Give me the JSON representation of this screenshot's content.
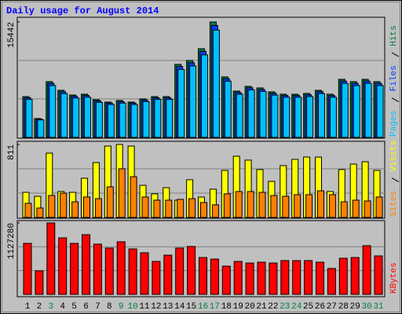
{
  "chart_data": [
    {
      "type": "bar",
      "title": "Daily usage for August 2014",
      "categories": [
        "1",
        "2",
        "3",
        "4",
        "5",
        "6",
        "7",
        "8",
        "9",
        "10",
        "11",
        "12",
        "13",
        "14",
        "15",
        "16",
        "17",
        "18",
        "19",
        "20",
        "21",
        "22",
        "23",
        "24",
        "25",
        "26",
        "27",
        "28",
        "29",
        "30",
        "31"
      ],
      "category_colors": [
        "#000000",
        "#000000",
        "#008040",
        "#000000",
        "#000000",
        "#000000",
        "#000000",
        "#000000",
        "#008040",
        "#008040",
        "#000000",
        "#000000",
        "#000000",
        "#000000",
        "#000000",
        "#008040",
        "#008040",
        "#000000",
        "#000000",
        "#000000",
        "#000000",
        "#000000",
        "#008040",
        "#008040",
        "#000000",
        "#000000",
        "#000000",
        "#000000",
        "#000000",
        "#008040",
        "#008040"
      ],
      "series": [
        {
          "name": "Hits",
          "color": "#008040",
          "values": [
            5460,
            2520,
            7460,
            6300,
            5670,
            5780,
            5040,
            4730,
            4940,
            4730,
            5150,
            5460,
            5460,
            9770,
            10290,
            11870,
            15442,
            8090,
            6200,
            6830,
            6620,
            6090,
            5780,
            5780,
            5880,
            6300,
            5780,
            7770,
            7460,
            7770,
            7460
          ]
        },
        {
          "name": "Files",
          "color": "#0040ff",
          "values": [
            5300,
            2440,
            7240,
            6110,
            5500,
            5610,
            4890,
            4590,
            4790,
            4590,
            5000,
            5300,
            5300,
            9480,
            9980,
            11510,
            14980,
            7850,
            6010,
            6630,
            6420,
            5910,
            5610,
            5610,
            5700,
            6110,
            5610,
            7540,
            7240,
            7540,
            7240
          ]
        },
        {
          "name": "Pages",
          "color": "#00c0ff",
          "values": [
            5080,
            2340,
            6940,
            5860,
            5270,
            5380,
            4690,
            4400,
            4590,
            4400,
            4790,
            5080,
            5080,
            9090,
            9570,
            11040,
            14360,
            7520,
            5770,
            6350,
            6160,
            5660,
            5380,
            5380,
            5470,
            5860,
            5380,
            7230,
            6940,
            7230,
            6940
          ]
        }
      ],
      "ylim": [
        0,
        15442
      ],
      "yticks": [
        15442
      ]
    },
    {
      "type": "bar",
      "series": [
        {
          "name": "Visits",
          "color": "#ffff00",
          "values": [
            279,
            235,
            715,
            288,
            279,
            436,
            610,
            793,
            811,
            793,
            357,
            262,
            331,
            192,
            419,
            227,
            314,
            523,
            680,
            637,
            532,
            401,
            576,
            645,
            671,
            671,
            288,
            532,
            593,
            619,
            523
          ]
        },
        {
          "name": "Sites",
          "color": "#ff8000",
          "values": [
            157,
            105,
            244,
            270,
            174,
            227,
            209,
            340,
            541,
            453,
            227,
            192,
            192,
            201,
            209,
            166,
            140,
            262,
            288,
            288,
            279,
            244,
            235,
            253,
            253,
            296,
            253,
            174,
            192,
            183,
            227
          ]
        }
      ],
      "ylim": [
        0,
        811
      ],
      "yticks": [
        811
      ]
    },
    {
      "type": "bar",
      "series": [
        {
          "name": "KBytes",
          "color": "#ff0000",
          "values": [
            805000,
            372000,
            1127280,
            892000,
            805000,
            942000,
            793000,
            731000,
            830000,
            718000,
            657000,
            520000,
            619000,
            731000,
            756000,
            582000,
            557000,
            446000,
            520000,
            495000,
            508000,
            495000,
            533000,
            533000,
            533000,
            508000,
            409000,
            570000,
            582000,
            768000,
            607000
          ]
        }
      ],
      "ylim": [
        0,
        1127280
      ],
      "yticks": [
        1127280
      ]
    }
  ]
}
